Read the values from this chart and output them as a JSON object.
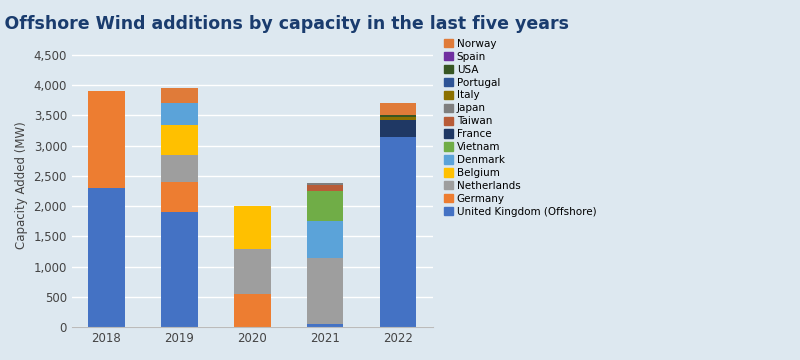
{
  "title": "Global Offshore Wind additions by capacity in the last five years",
  "ylabel": "Capacity Added (MW)",
  "years": [
    "2018",
    "2019",
    "2020",
    "2021",
    "2022"
  ],
  "background_color": "#dde8f0",
  "countries": [
    "United Kingdom (Offshore)",
    "Germany",
    "Netherlands",
    "Belgium",
    "Denmark",
    "Vietnam",
    "France",
    "Taiwan",
    "Japan",
    "Italy",
    "Portugal",
    "USA",
    "Spain",
    "Norway"
  ],
  "colors": [
    "#4472c4",
    "#ed7d31",
    "#9e9e9e",
    "#ffc000",
    "#5ba3d9",
    "#70ad47",
    "#1f3864",
    "#b85c38",
    "#7f7f7f",
    "#8b7000",
    "#2e5496",
    "#375623",
    "#7030a0",
    "#e07b39"
  ],
  "data": {
    "United Kingdom (Offshore)": [
      2300,
      1900,
      0,
      50,
      3150
    ],
    "Germany": [
      1600,
      500,
      550,
      0,
      0
    ],
    "Netherlands": [
      0,
      450,
      750,
      1100,
      0
    ],
    "Belgium": [
      0,
      500,
      700,
      0,
      0
    ],
    "Denmark": [
      0,
      350,
      0,
      600,
      0
    ],
    "Vietnam": [
      0,
      0,
      0,
      500,
      0
    ],
    "France": [
      0,
      0,
      0,
      0,
      270
    ],
    "Taiwan": [
      0,
      0,
      0,
      100,
      0
    ],
    "Japan": [
      0,
      0,
      0,
      30,
      0
    ],
    "Italy": [
      0,
      0,
      0,
      0,
      60
    ],
    "Portugal": [
      0,
      0,
      0,
      0,
      0
    ],
    "USA": [
      0,
      0,
      0,
      0,
      30
    ],
    "Spain": [
      0,
      0,
      0,
      0,
      0
    ],
    "Norway": [
      0,
      250,
      0,
      0,
      200
    ]
  },
  "ylim": [
    0,
    4700
  ],
  "yticks": [
    0,
    500,
    1000,
    1500,
    2000,
    2500,
    3000,
    3500,
    4000,
    4500
  ],
  "title_color": "#1a3c6e",
  "title_fontsize": 12.5,
  "axis_label_fontsize": 8.5,
  "legend_fontsize": 7.5,
  "bar_width": 0.5
}
